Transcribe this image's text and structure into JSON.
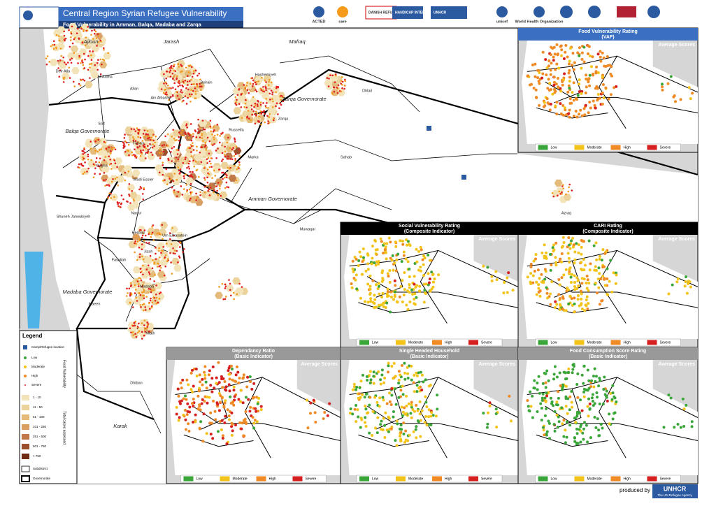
{
  "header": {
    "title": "Central Region Syrian Refugee Vulnerability",
    "subtitle": "Food Vulnerability in Amman, Balqa, Madaba and Zarqa"
  },
  "logos": [
    "ACTED",
    "care",
    "DANISH REFUGEE COUNCIL",
    "HANDICAP INTERNATIONAL",
    "UNHCR",
    "unicef",
    "World Health Organization"
  ],
  "map": {
    "places": [
      "Ajloun",
      "Jarash",
      "Mafraq",
      "Deir Alla",
      "Al-Ardha",
      "Allan",
      "Ain Albasha",
      "Beirain",
      "Hashemiyeh",
      "Zarqa Governorate",
      "Dhlail",
      "Salt",
      "Balqa Governorate",
      "Fuhais",
      "Russeifa",
      "Zarqa",
      "Marka",
      "Sahab",
      "Yargha",
      "Wadi Essier",
      "Amman Governorate",
      "Shuneh Janoubiyeh",
      "Naour",
      "Hesban",
      "Um Elbasatein",
      "Muwaqar",
      "Azraq",
      "Jizah",
      "Fasaliah",
      "Madaba",
      "Madaba Governorate",
      "Maeen",
      "Mlaih",
      "Dhiban",
      "Karak"
    ]
  },
  "legend": {
    "title": "Legend",
    "camp": "Camp/Refugee location",
    "ratings": [
      "Low",
      "Moderate",
      "High",
      "Severe"
    ],
    "ratings_group": "Food Vulnerability",
    "cases": [
      "1 - 10",
      "11 - 50",
      "51 - 100",
      "101 - 250",
      "251 - 500",
      "501 - 750",
      "> 750"
    ],
    "cases_group": "Total cases assessed",
    "subdistrict": "Subdistrict",
    "governorate": "Governorate"
  },
  "insets": [
    {
      "title": "Food Vulnerability Rating",
      "subtitle": "(VAF)",
      "note": "Average Scores"
    },
    {
      "title": "Social Vulnerability Rating",
      "subtitle": "(Composite Indicator)",
      "note": "Average Scores"
    },
    {
      "title": "CARI Rating",
      "subtitle": "(Composite Indicator)",
      "note": "Average Scores"
    },
    {
      "title": "Dependancy Ratio",
      "subtitle": "(Basic Indicator)",
      "note": "Average Scores"
    },
    {
      "title": "Single Headed Household",
      "subtitle": "(Basic Indicator)",
      "note": "Average Scores"
    },
    {
      "title": "Food Consumption Score Rating",
      "subtitle": "(Basic Indicator)",
      "note": "Average Scores"
    }
  ],
  "inset_legend": [
    "Low",
    "Moderate",
    "High",
    "Severe"
  ],
  "footer": {
    "produced_by": "produced by",
    "agency": "UNHCR",
    "agency_sub": "The UN Refugee Agency"
  }
}
